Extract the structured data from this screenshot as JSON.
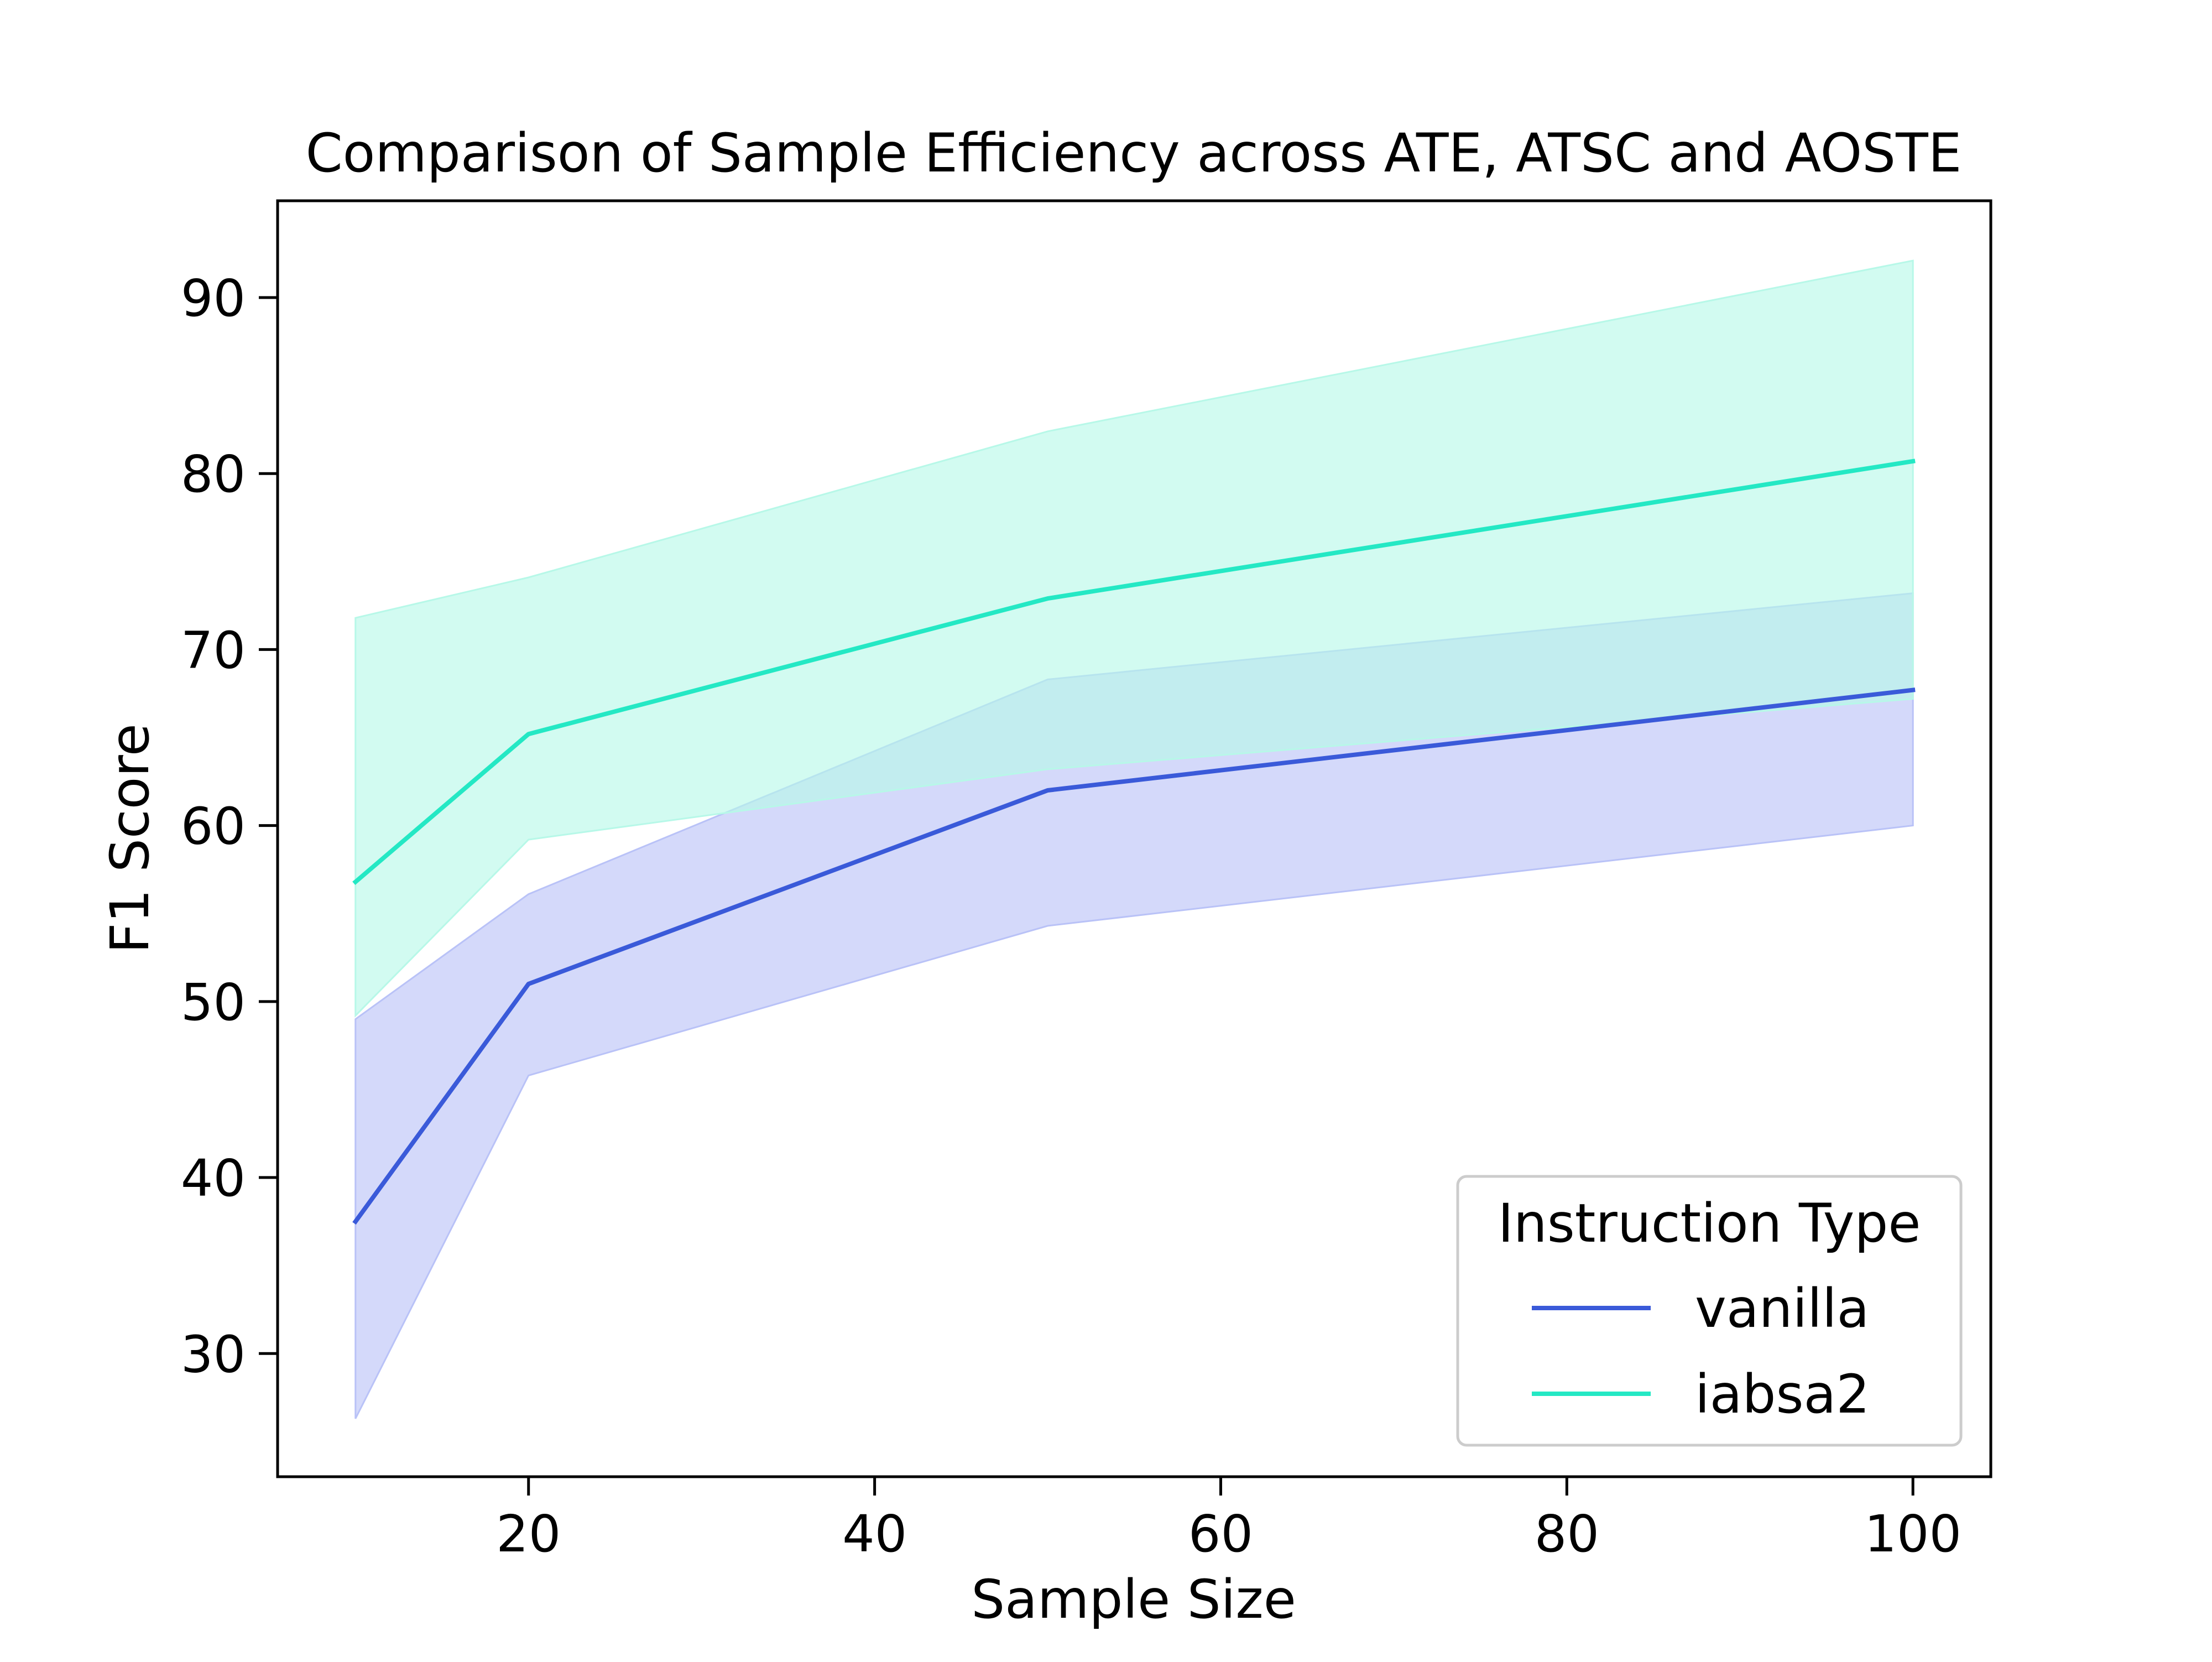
{
  "chart_data": {
    "type": "line",
    "title": "Comparison of Sample Efficiency across ATE, ATSC and AOSTE",
    "xlabel": "Sample Size",
    "ylabel": "F1 Score",
    "xlim": [
      5.5,
      104.5
    ],
    "ylim": [
      23,
      95.5
    ],
    "xticks": [
      20,
      40,
      60,
      80,
      100
    ],
    "yticks": [
      30,
      40,
      50,
      60,
      70,
      80,
      90
    ],
    "x": [
      10,
      20,
      50,
      100
    ],
    "series": [
      {
        "name": "vanilla",
        "color": "#3a5ad9",
        "band_color": "#b9c2f7",
        "values": [
          37.5,
          51,
          62,
          67.7
        ],
        "lower": [
          26.3,
          45.8,
          54.3,
          60
        ],
        "upper": [
          49,
          56.1,
          68.3,
          73.2
        ]
      },
      {
        "name": "iabsa2",
        "color": "#24e8c4",
        "band_color": "#b7f8e8",
        "values": [
          56.8,
          65.2,
          72.9,
          80.7
        ],
        "lower": [
          49.2,
          59.2,
          63.2,
          67.2
        ],
        "upper": [
          71.8,
          74.1,
          82.4,
          92.1
        ]
      }
    ],
    "grid": false,
    "legend": {
      "title": "Instruction Type",
      "position": "lower-right"
    }
  }
}
